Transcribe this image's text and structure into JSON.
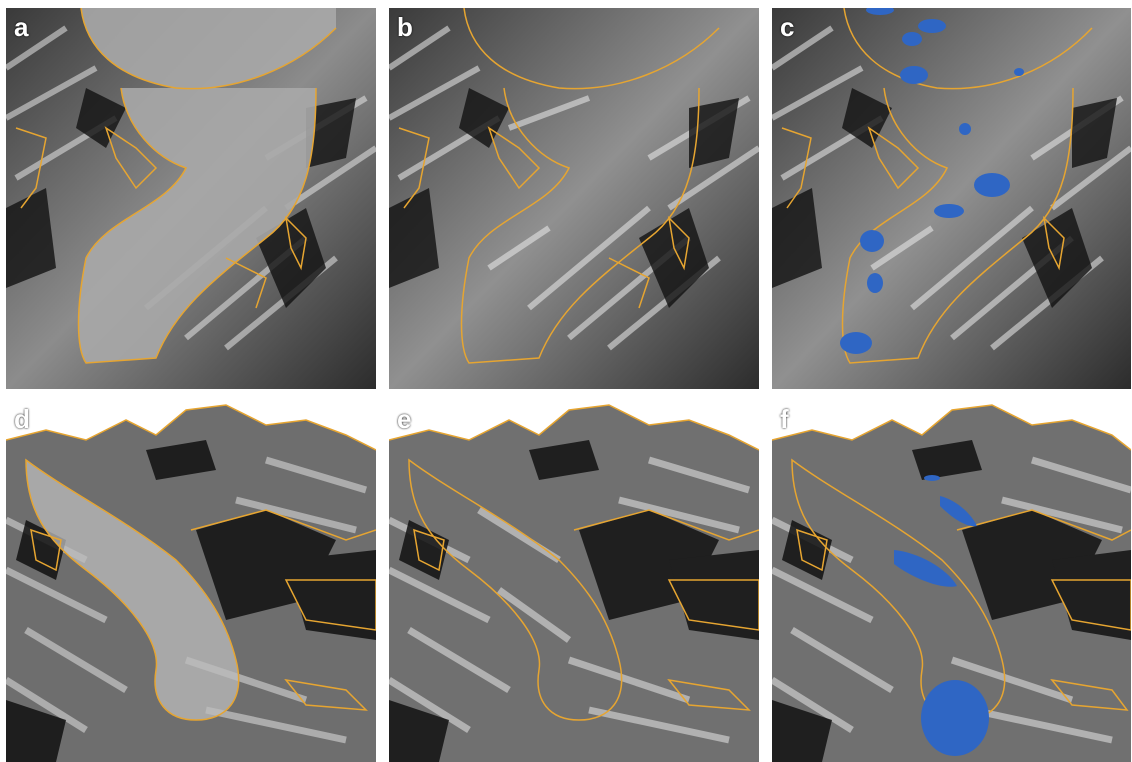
{
  "figure": {
    "panels": [
      {
        "id": "a",
        "label": "a",
        "view": "plan",
        "lakes": false,
        "glacier_fill": true
      },
      {
        "id": "b",
        "label": "b",
        "view": "plan",
        "lakes": false,
        "glacier_fill": false
      },
      {
        "id": "c",
        "label": "c",
        "view": "plan",
        "lakes": true,
        "glacier_fill": false
      },
      {
        "id": "d",
        "label": "d",
        "view": "perspective",
        "lakes": false,
        "glacier_fill": true
      },
      {
        "id": "e",
        "label": "e",
        "view": "perspective",
        "lakes": false,
        "glacier_fill": false
      },
      {
        "id": "f",
        "label": "f",
        "view": "perspective",
        "lakes": true,
        "glacier_fill": false
      }
    ]
  },
  "colors": {
    "outline": "#e6a531",
    "lake": "#2f66c4",
    "label": "#ffffff",
    "terrain_dark": "#141414",
    "terrain_light": "#e8e8e8"
  }
}
